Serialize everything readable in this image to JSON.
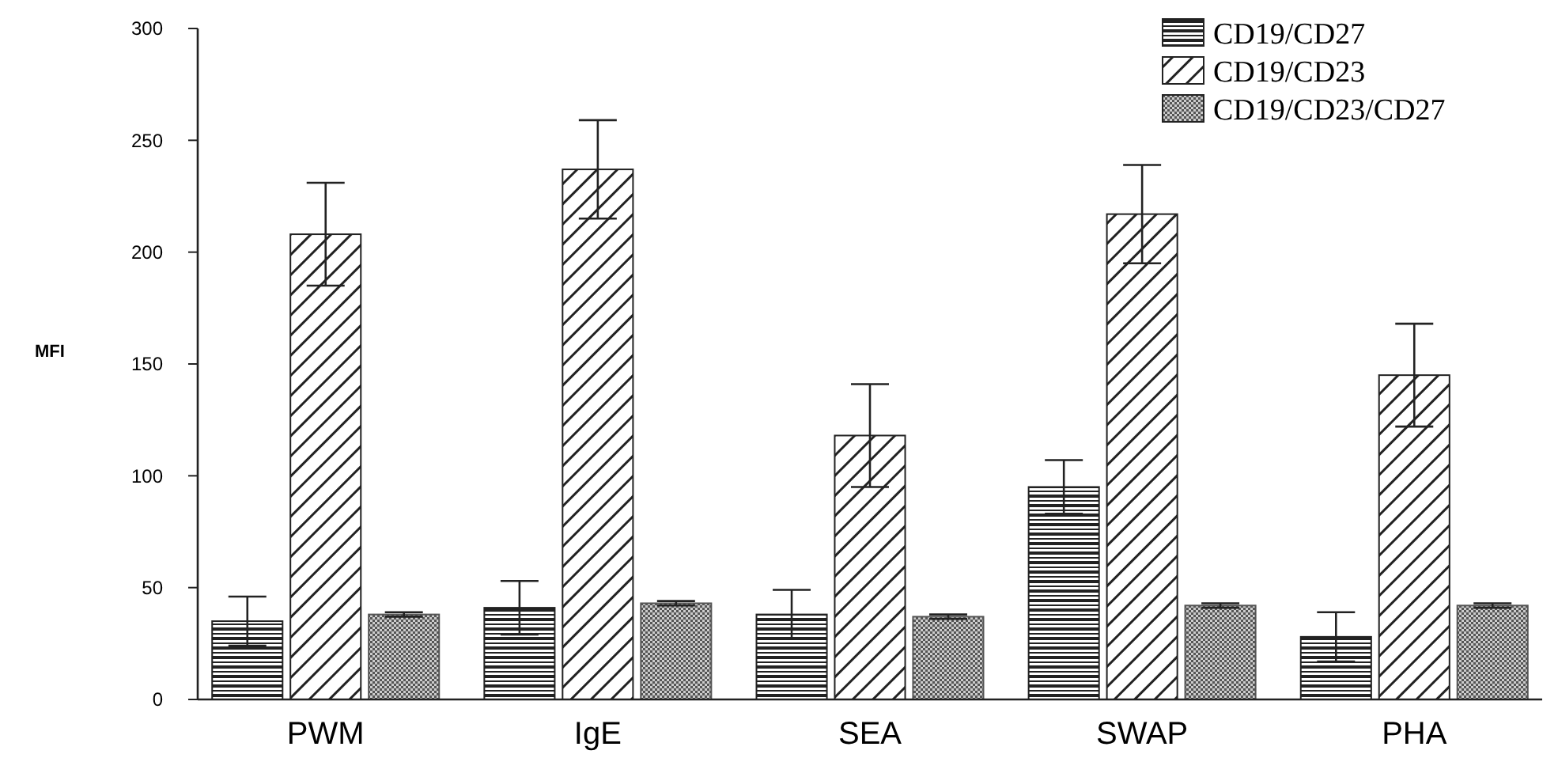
{
  "chart_data": {
    "type": "bar",
    "ylabel": "MFI",
    "categories": [
      "PWM",
      "IgE",
      "SEA",
      "SWAP",
      "PHA"
    ],
    "ylim": [
      0,
      300
    ],
    "yticks": [
      0,
      50,
      100,
      150,
      200,
      250,
      300
    ],
    "legend": "top right",
    "grid": false,
    "series": [
      {
        "name": "CD19/CD27",
        "color": "#222222",
        "values": [
          35,
          41,
          38,
          95,
          28
        ],
        "errors": [
          11,
          12,
          11,
          12,
          11
        ]
      },
      {
        "name": "CD19/CD23",
        "color": "#222222",
        "values": [
          208,
          237,
          118,
          217,
          145
        ],
        "errors": [
          23,
          22,
          23,
          22,
          23
        ]
      },
      {
        "name": "CD19/CD23/CD27",
        "color": "#555555",
        "values": [
          38,
          43,
          37,
          42,
          42
        ],
        "errors": [
          1,
          1,
          1,
          1,
          1
        ]
      }
    ]
  }
}
